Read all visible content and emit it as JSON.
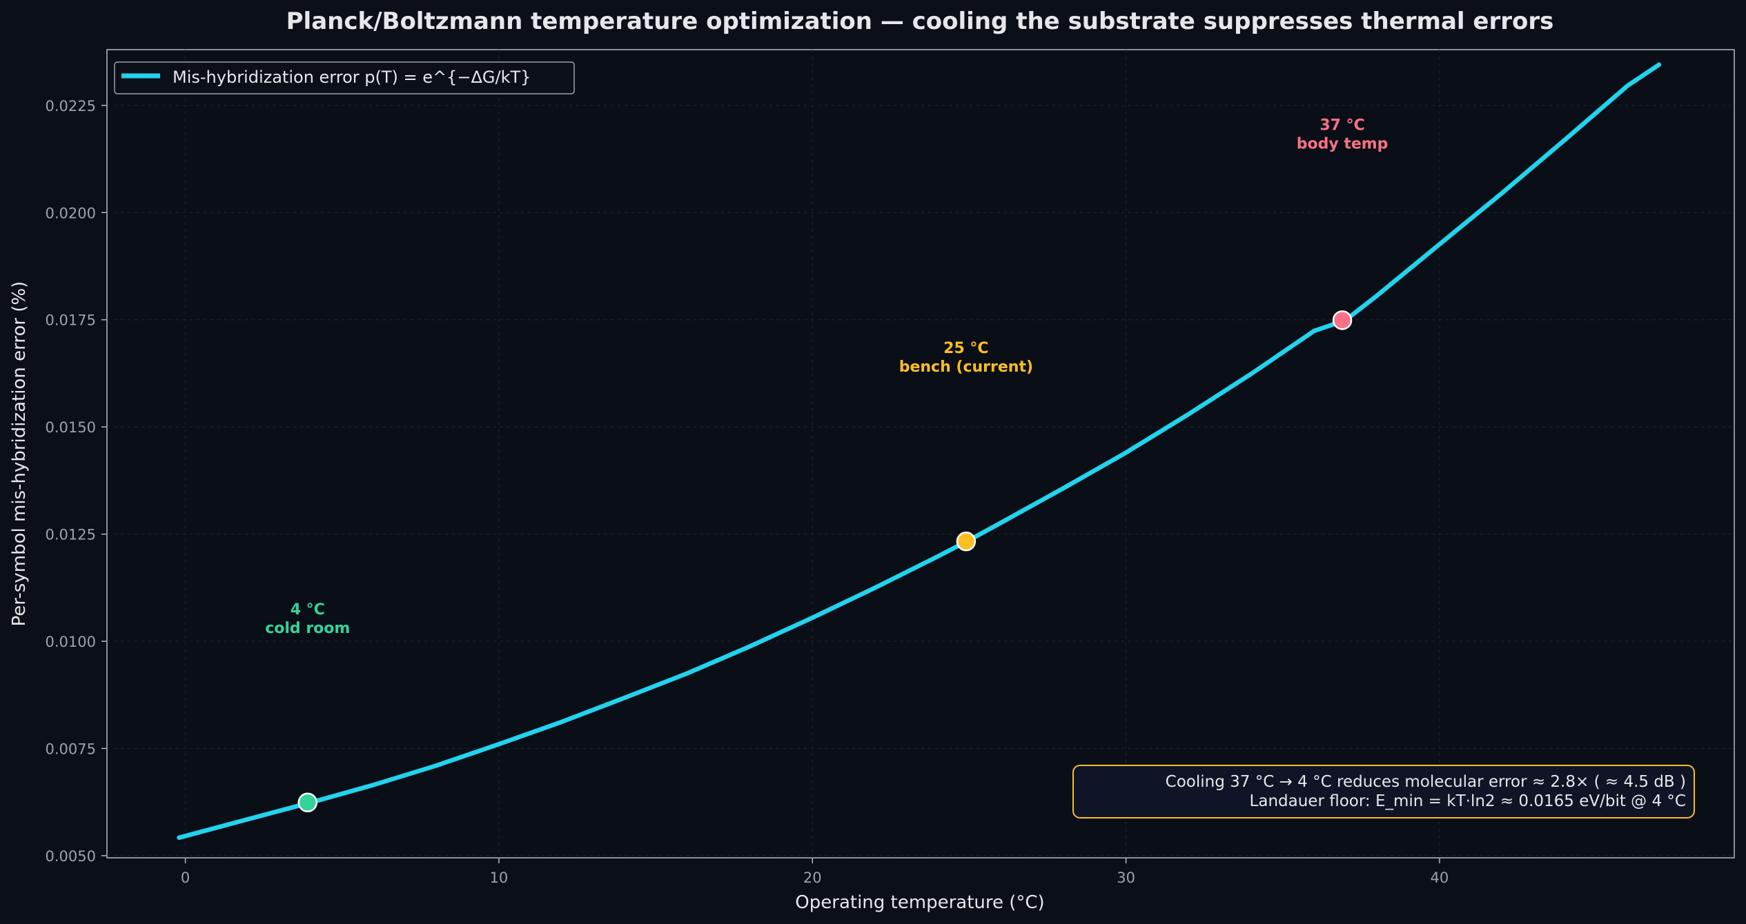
{
  "chart_data": {
    "type": "line",
    "title": "Planck/Boltzmann temperature optimization  —  cooling the substrate suppresses thermal errors",
    "xlabel": "Operating temperature  (°C)",
    "ylabel": "Per-symbol mis-hybridization error  (%)",
    "xlim": [
      -2.5,
      49.4
    ],
    "ylim": [
      0.00495,
      0.0238
    ],
    "x_ticks": [
      0,
      10,
      20,
      30,
      40
    ],
    "x_tick_labels": [
      "0",
      "10",
      "20",
      "30",
      "40"
    ],
    "y_ticks": [
      0.005,
      0.0075,
      0.01,
      0.0125,
      0.015,
      0.0175,
      0.02,
      0.0225
    ],
    "y_tick_labels": [
      "0.0050",
      "0.0075",
      "0.0100",
      "0.0125",
      "0.0150",
      "0.0175",
      "0.0200",
      "0.0225"
    ],
    "grid": true,
    "legend_position": "top-left",
    "series": [
      {
        "name": "Mis-hybridization error  p(T) = e^{−ΔG/kT}",
        "color": "#22d3ee",
        "x": [
          -0.2,
          2,
          4,
          6,
          8,
          10,
          12,
          14,
          16,
          18,
          20,
          22,
          24,
          25,
          26,
          28,
          30,
          32,
          34,
          36,
          37,
          38,
          40,
          42,
          44,
          46,
          47
        ],
        "y": [
          0.00542,
          0.00585,
          0.00624,
          0.00665,
          0.0071,
          0.0076,
          0.00812,
          0.00868,
          0.00925,
          0.00988,
          0.01055,
          0.01125,
          0.01198,
          0.01236,
          0.01276,
          0.01357,
          0.0144,
          0.0153,
          0.01624,
          0.01724,
          0.01749,
          0.01806,
          0.01926,
          0.02046,
          0.0217,
          0.02296,
          0.02345
        ]
      }
    ],
    "markers": [
      {
        "x": 3.9,
        "y": 0.00624,
        "color": "#34d399",
        "label_line1": "4 °C",
        "label_line2": "cold room",
        "label_y": 0.0104
      },
      {
        "x": 24.9,
        "y": 0.01233,
        "color": "#fbbf24",
        "label_line1": "25 °C",
        "label_line2": "bench (current)",
        "label_y": 0.0165
      },
      {
        "x": 36.9,
        "y": 0.01749,
        "color": "#fb7185",
        "label_line1": "37 °C",
        "label_line2": "body temp",
        "label_y": 0.0217
      }
    ],
    "annotation": {
      "line1": "Cooling  37 °C  →  4 °C   reduces molecular error  ≈ 2.8×   ( ≈ 4.5 dB )",
      "line2": "Landauer floor:  E_min = kT·ln2  ≈  0.0165 eV/bit @ 4 °C",
      "border_color": "#fbbf24"
    }
  }
}
